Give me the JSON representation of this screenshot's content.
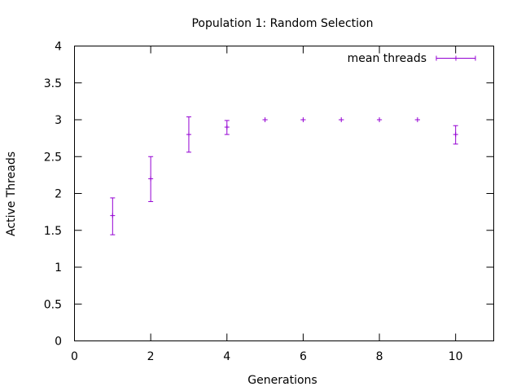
{
  "chart_data": {
    "type": "scatter",
    "title": "Population 1: Random Selection",
    "xlabel": "Generations",
    "ylabel": "Active Threads",
    "xlim": [
      0,
      11
    ],
    "ylim": [
      0,
      4
    ],
    "xticks": [
      0,
      2,
      4,
      6,
      8,
      10
    ],
    "xtick_labels": [
      "0",
      "2",
      "4",
      "6",
      "8",
      "10"
    ],
    "yticks": [
      0,
      0.5,
      1,
      1.5,
      2,
      2.5,
      3,
      3.5,
      4
    ],
    "ytick_labels": [
      "0",
      "0.5",
      "1",
      "1.5",
      "2",
      "2.5",
      "3",
      "3.5",
      "4"
    ],
    "grid": false,
    "legend_position": "top-right",
    "series": [
      {
        "name": "mean threads",
        "color": "#9400d3",
        "error_bars": true,
        "x": [
          1,
          2,
          3,
          4,
          5,
          6,
          7,
          8,
          9,
          10
        ],
        "y": [
          1.7,
          2.2,
          2.8,
          2.9,
          3.0,
          3.0,
          3.0,
          3.0,
          3.0,
          2.8
        ],
        "y_low": [
          1.44,
          1.89,
          2.56,
          2.8,
          3.0,
          3.0,
          3.0,
          3.0,
          3.0,
          2.67
        ],
        "y_high": [
          1.94,
          2.5,
          3.04,
          2.99,
          3.0,
          3.0,
          3.0,
          3.0,
          3.0,
          2.92
        ]
      }
    ]
  }
}
